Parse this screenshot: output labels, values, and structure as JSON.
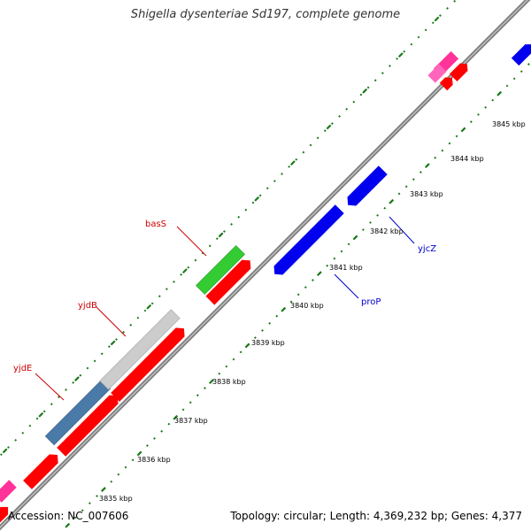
{
  "title": "Shigella dysenteriae Sd197, complete genome",
  "footer": {
    "accession": "Accession: NC_007606",
    "summary": "Topology: circular; Length: 4,369,232 bp; Genes: 4,377"
  },
  "colors": {
    "backbone": "#808080",
    "tick": "#1a7a1a",
    "gene_forward_red": "#ff0000",
    "gene_blue": "#0000ee",
    "gene_pink": "#ff3399",
    "gene_green": "#33cc33",
    "gene_gray": "#cccccc",
    "gene_steel": "#4a7aa8",
    "label_red": "#cc0000",
    "label_blue": "#0000cc"
  },
  "kbp_labels": [
    "3835 kbp",
    "3836 kbp",
    "3837 kbp",
    "3838 kbp",
    "3839 kbp",
    "3840 kbp",
    "3841 kbp",
    "3842 kbp",
    "3843 kbp",
    "3844 kbp",
    "3845 kbp"
  ],
  "gene_labels": [
    {
      "name": "basS",
      "color": "red"
    },
    {
      "name": "yjdB",
      "color": "red"
    },
    {
      "name": "yjdE",
      "color": "red"
    },
    {
      "name": "proP",
      "color": "blue"
    },
    {
      "name": "yjcZ",
      "color": "blue"
    }
  ]
}
